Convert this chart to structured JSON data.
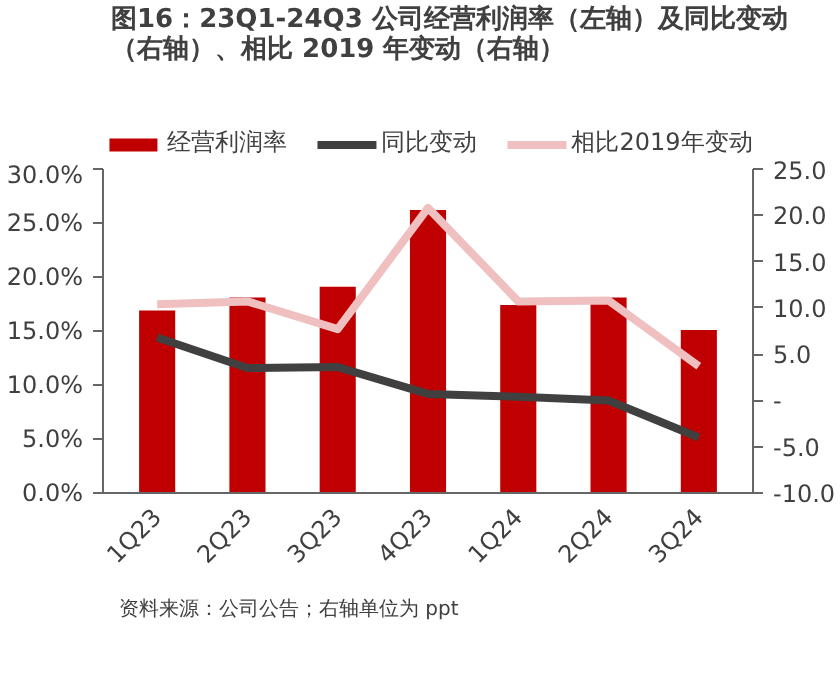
{
  "chart_data": {
    "type": "bar",
    "title": "图16：23Q1-24Q3 公司经营利润率（左轴）及同比变动（右轴）、相比 2019 年变动（右轴）",
    "categories": [
      "1Q23",
      "2Q23",
      "3Q23",
      "4Q23",
      "1Q24",
      "2Q24",
      "3Q24"
    ],
    "series": [
      {
        "name": "经营利润率",
        "color": "#c00000",
        "values": [
          16.9,
          18.1,
          19.1,
          26.2,
          17.4,
          18.1,
          15.1
        ]
      },
      {
        "name": "同比变动",
        "type": "line",
        "axis": "y2",
        "color": "#404040",
        "values": [
          6.8,
          3.5,
          3.6,
          0.7,
          0.4,
          0.0,
          -4.0
        ]
      },
      {
        "name": "相比2019年变动",
        "type": "line",
        "axis": "y2",
        "color": "#f0c0c0",
        "values": [
          10.4,
          10.7,
          7.7,
          20.8,
          10.7,
          10.8,
          3.7
        ]
      }
    ],
    "ylim": [
      0,
      30
    ],
    "yticks": [
      {
        "value": 0,
        "label": "0.0%"
      },
      {
        "value": 5,
        "label": "5.0%"
      },
      {
        "value": 10,
        "label": "10.0%"
      },
      {
        "value": 15,
        "label": "15.0%"
      },
      {
        "value": 20,
        "label": "20.0%"
      },
      {
        "value": 25,
        "label": "25.0%"
      },
      {
        "value": 30,
        "label": "30.0%"
      }
    ],
    "y2lim": [
      -10,
      25
    ],
    "y2ticks": [
      {
        "value": -10,
        "label": "-10.0"
      },
      {
        "value": -5,
        "label": "-5.0"
      },
      {
        "value": 0,
        "label": "-"
      },
      {
        "value": 5,
        "label": "5.0"
      },
      {
        "value": 10,
        "label": "10.0"
      },
      {
        "value": 15,
        "label": "15.0"
      },
      {
        "value": 20,
        "label": "20.0"
      },
      {
        "value": 25,
        "label": "25.0"
      }
    ],
    "grid": false,
    "legend": "top",
    "marker": "none",
    "line_style": "solid",
    "annotations": [
      "资料来源：公司公告；右轴单位为 ppt"
    ]
  }
}
